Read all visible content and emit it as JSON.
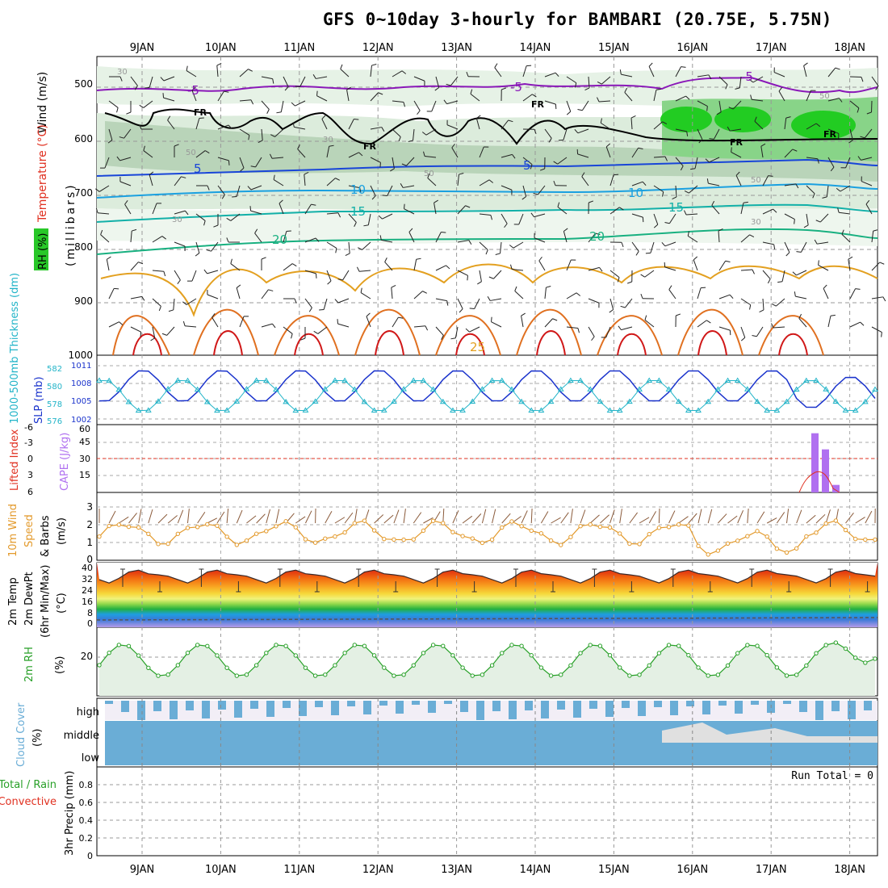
{
  "title": "GFS 0~10day 3-hourly for BAMBARI (20.75E, 5.75N)",
  "dates": [
    "9JAN",
    "10JAN",
    "11JAN",
    "12JAN",
    "13JAN",
    "14JAN",
    "15JAN",
    "16JAN",
    "17JAN",
    "18JAN"
  ],
  "panels": {
    "profile": {
      "ylabel_wind": "Wind (m/s)",
      "ylabel_temp": "Temperature (°C)",
      "ylabel_rh": "RH (%)",
      "ylabel_mb": "(millibars)",
      "ticks": [
        "500",
        "600",
        "700",
        "800",
        "900",
        "1000"
      ],
      "temp_labels": [
        "-5",
        "-5",
        "-5",
        "FR",
        "FR",
        "FR",
        "FR",
        "FR",
        "5",
        "5",
        "10",
        "10",
        "15",
        "15",
        "20",
        "20",
        "25"
      ],
      "rh_labels": [
        "30",
        "50",
        "50",
        "30",
        "30",
        "50",
        "30",
        "50"
      ]
    },
    "thickness": {
      "ylabel_thk": "1000-500mb Thickness (dm)",
      "ylabel_slp": "SLP (mb)",
      "ticks_left": [
        "582",
        "580",
        "578",
        "576"
      ],
      "ticks_right": [
        "1011",
        "1008",
        "1005",
        "1002"
      ]
    },
    "stability": {
      "ylabel_li": "Lifted Index",
      "ylabel_cape": "CAPE (J/kg)",
      "ticks_left": [
        "-6",
        "-3",
        "0",
        "3",
        "6"
      ],
      "ticks_right": [
        "60",
        "45",
        "30",
        "15"
      ]
    },
    "wind10": {
      "ylabel1": "10m Wind",
      "ylabel2": "Speed",
      "ylabel3": "& Barbs",
      "unit": "(m/s)",
      "ticks": [
        "3",
        "2",
        "1",
        "0"
      ]
    },
    "temp2m": {
      "ylabel1": "2m Temp",
      "ylabel2": "2m DewPt",
      "ylabel3": "(6hr Min/Max)",
      "unit": "(°C)",
      "ticks": [
        "40",
        "32",
        "24",
        "16",
        "8",
        "0"
      ]
    },
    "rh2m": {
      "ylabel": "2m RH",
      "unit": "(%)",
      "ticks": [
        "20"
      ]
    },
    "cloud": {
      "ylabel1": "Cloud Cover",
      "ylabel2": "(%)",
      "levels": [
        "high",
        "middle",
        "low"
      ]
    },
    "precip": {
      "ylabel_total": "Total / Rain",
      "ylabel_conv": "Convective",
      "ylabel_unit": "3hr Precip (mm)",
      "ticks": [
        "0.8",
        "0.6",
        "0.4",
        "0.2",
        "0"
      ],
      "run_total": "Run Total = 0"
    }
  },
  "colors": {
    "slp": "#1a33cc",
    "thickness": "#22b4c8",
    "wind10": "#e39a2c",
    "cape": "#b070f0",
    "li": "#e03020",
    "rh": "#28a028",
    "cloud": "#6aadd6"
  },
  "chart_data": [
    {
      "type": "line",
      "name": "1000-500mb Thickness / SLP",
      "x": [
        "9JAN",
        "10JAN",
        "11JAN",
        "12JAN",
        "13JAN",
        "14JAN",
        "15JAN",
        "16JAN",
        "17JAN",
        "18JAN"
      ],
      "series": [
        {
          "name": "SLP (mb)",
          "values": [
            1007.5,
            1009.8,
            1010.2,
            1009.6,
            1009.2,
            1008.0,
            1008.5,
            1008.0,
            1006.5,
            1005.5
          ]
        },
        {
          "name": "Thickness (dm)",
          "values": [
            577.0,
            579.5,
            577.5,
            578.5,
            577.0,
            578.0,
            578.0,
            580.0,
            580.5,
            581.0
          ]
        }
      ]
    },
    {
      "type": "line",
      "name": "10m Wind Speed (m/s)",
      "x": [
        "9JAN",
        "10JAN",
        "11JAN",
        "12JAN",
        "13JAN",
        "14JAN",
        "15JAN",
        "16JAN",
        "17JAN",
        "18JAN"
      ],
      "series": [
        {
          "name": "Speed",
          "values": [
            1.5,
            1.6,
            2.3,
            1.8,
            2.6,
            2.0,
            2.4,
            2.2,
            1.1,
            1.2
          ]
        }
      ]
    },
    {
      "type": "bar",
      "name": "CAPE (J/kg)",
      "categories": [
        "17JAN 12Z",
        "17JAN 15Z",
        "17JAN 18Z"
      ],
      "values": [
        55,
        40,
        7
      ]
    },
    {
      "type": "line",
      "name": "2m RH (%)",
      "x": [
        "9JAN",
        "10JAN",
        "11JAN",
        "12JAN",
        "13JAN",
        "14JAN",
        "15JAN",
        "16JAN",
        "17JAN",
        "18JAN"
      ],
      "series": [
        {
          "name": "RH",
          "values": [
            22,
            21,
            22,
            21,
            21,
            21,
            21,
            22,
            22,
            24
          ]
        }
      ]
    }
  ]
}
